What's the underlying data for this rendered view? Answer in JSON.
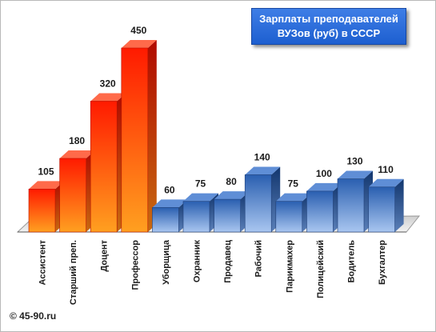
{
  "title": {
    "line1": "Зарплаты преподавателей",
    "line2": "ВУЗов (руб) в СССР"
  },
  "copyright": "© 45-90.ru",
  "colors": {
    "teacher_front_top": "#ff1a00",
    "teacher_front_bottom": "#ffa020",
    "other_front_top": "#2a5fb0",
    "other_front_bottom": "#a9c6f0",
    "title_bg": "#2a6ddb"
  },
  "chart_data": {
    "type": "bar",
    "categories": [
      "Ассистент",
      "Старший преп.",
      "Доцент",
      "Профессор",
      "Уборщица",
      "Охранник",
      "Продавец",
      "Рабочий",
      "Парикмахер",
      "Полицейский",
      "Водитель",
      "Бухгалтер"
    ],
    "values": [
      105,
      180,
      320,
      450,
      60,
      75,
      80,
      140,
      75,
      100,
      130,
      110
    ],
    "groups": [
      "teacher",
      "teacher",
      "teacher",
      "teacher",
      "other",
      "other",
      "other",
      "other",
      "other",
      "other",
      "other",
      "other"
    ],
    "ylim": [
      0,
      450
    ],
    "grid": false,
    "legend": "none",
    "style": "3d-columns"
  }
}
